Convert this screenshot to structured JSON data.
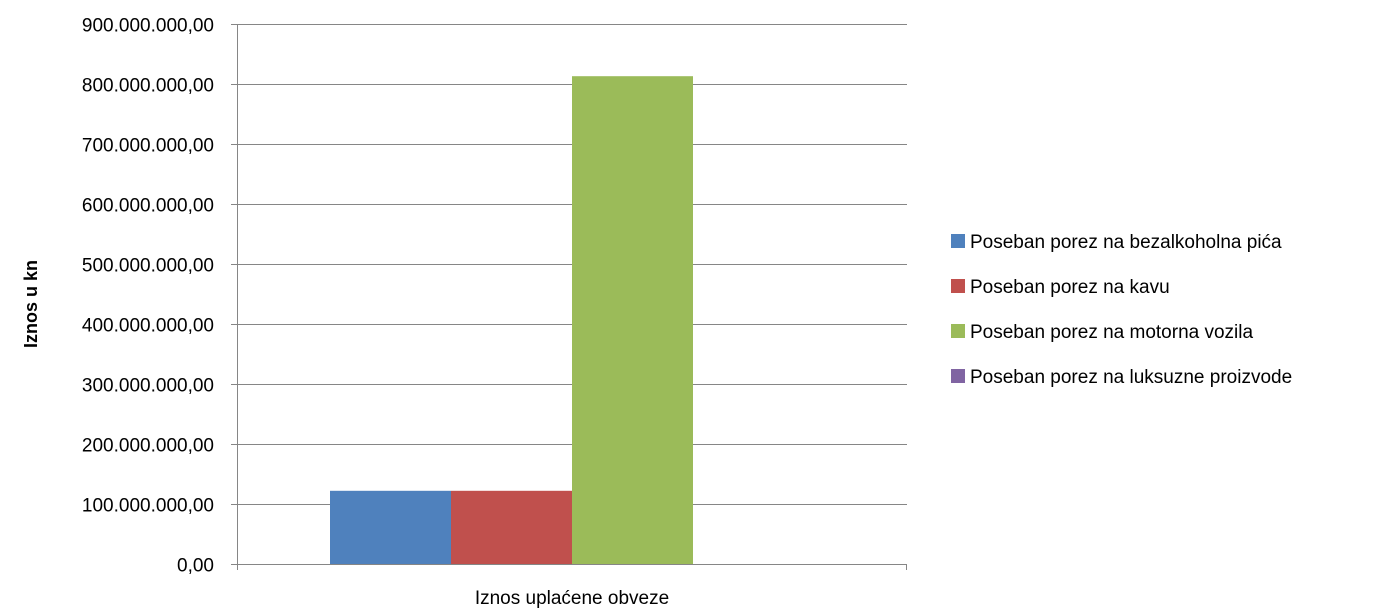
{
  "chart_data": {
    "type": "bar",
    "title": "",
    "xlabel": "",
    "ylabel": "Iznos u kn",
    "categories": [
      "Iznos uplaćene obveze"
    ],
    "ylim": [
      0,
      900000000
    ],
    "ytick_step": 100000000,
    "ytick_labels": [
      "0,00",
      "100.000.000,00",
      "200.000.000,00",
      "300.000.000,00",
      "400.000.000,00",
      "500.000.000,00",
      "600.000.000,00",
      "700.000.000,00",
      "800.000.000,00",
      "900.000.000,00"
    ],
    "grid": true,
    "legend_position": "right",
    "series": [
      {
        "name": "Poseban porez na bezalkoholna pića",
        "color": "#4f81bd",
        "values": [
          122000000
        ]
      },
      {
        "name": "Poseban porez na kavu",
        "color": "#c0504d",
        "values": [
          122000000
        ]
      },
      {
        "name": "Poseban porez na motorna vozila",
        "color": "#9bbb59",
        "values": [
          813000000
        ]
      },
      {
        "name": "Poseban porez na luksuzne proizvode",
        "color": "#8064a2",
        "values": [
          0
        ]
      }
    ]
  }
}
